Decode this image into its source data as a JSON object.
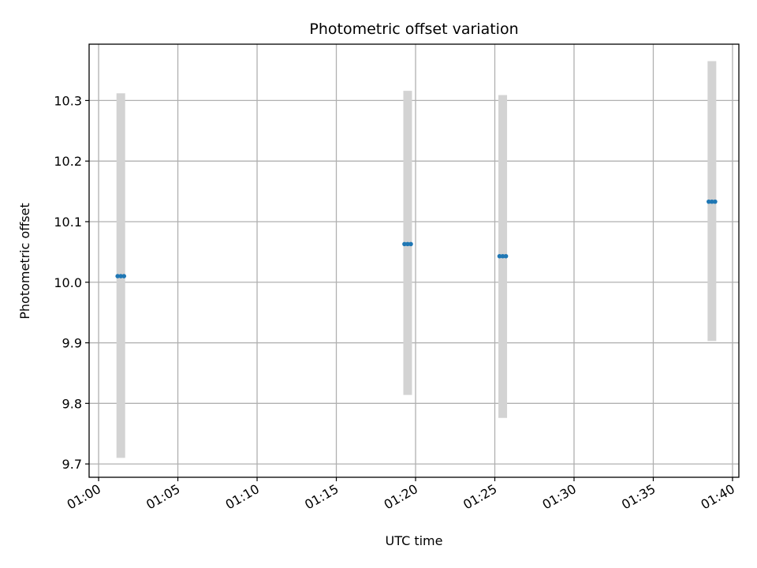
{
  "chart_data": {
    "type": "scatter",
    "title": "Photometric offset variation",
    "xlabel": "UTC time",
    "ylabel": "Photometric offset",
    "grid": true,
    "legend": "none",
    "xlim": [
      "00:59:24",
      "01:40:24"
    ],
    "ylim": [
      9.678,
      10.393
    ],
    "x_ticks": [
      "01:00",
      "01:05",
      "01:10",
      "01:15",
      "01:20",
      "01:25",
      "01:30",
      "01:35",
      "01:40"
    ],
    "y_ticks": [
      "9.7",
      "9.8",
      "9.9",
      "10.0",
      "10.1",
      "10.2",
      "10.3"
    ],
    "colors": {
      "marker": "#1f77b4",
      "errorbar": "#d3d3d3",
      "grid": "#b0b0b0"
    },
    "series": [
      {
        "points": [
          {
            "x": [
              "01:01:12",
              "01:01:24",
              "01:01:36"
            ],
            "y": 10.01,
            "y_low": 9.71,
            "y_high": 10.312
          },
          {
            "x": [
              "01:19:18",
              "01:19:30",
              "01:19:42"
            ],
            "y": 10.063,
            "y_low": 9.814,
            "y_high": 10.316
          },
          {
            "x": [
              "01:25:18",
              "01:25:30",
              "01:25:42"
            ],
            "y": 10.043,
            "y_low": 9.776,
            "y_high": 10.309
          },
          {
            "x": [
              "01:38:30",
              "01:38:42",
              "01:38:54"
            ],
            "y": 10.133,
            "y_low": 9.903,
            "y_high": 10.365
          }
        ]
      }
    ]
  }
}
